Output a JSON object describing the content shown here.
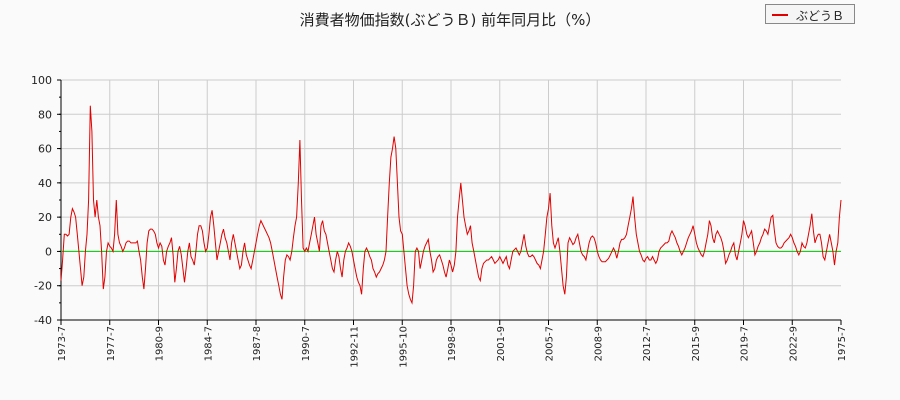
{
  "title": "消費者物価指数(ぶどうＢ) 前年同月比（%）",
  "legend": {
    "label": "ぶどうＢ",
    "color": "#e00000"
  },
  "chart_data": {
    "type": "line",
    "title": "消費者物価指数(ぶどうＢ) 前年同月比（%）",
    "xlabel": "",
    "ylabel": "",
    "ylim": [
      -40,
      100
    ],
    "yticks": [
      -40,
      -20,
      0,
      20,
      40,
      60,
      80,
      100
    ],
    "grid": true,
    "legend_position": "top-right",
    "zero_line_color": "#00cc00",
    "x_tick_labels": [
      "1973-7",
      "1977-7",
      "1980-9",
      "1984-7",
      "1987-8",
      "1990-7",
      "1992-11",
      "1995-10",
      "1998-9",
      "2001-9",
      "2005-7",
      "2008-9",
      "2012-7",
      "2015-9",
      "2019-7",
      "2022-9",
      "1975-7"
    ],
    "x_start": "1973-7",
    "series": [
      {
        "name": "ぶどうＢ",
        "color": "#e00000",
        "sample_interval_months": 2,
        "values": [
          -17,
          -5,
          10,
          10,
          9,
          10,
          20,
          25,
          23,
          20,
          10,
          0,
          -10,
          -20,
          -15,
          0,
          10,
          30,
          85,
          70,
          30,
          20,
          30,
          20,
          15,
          0,
          -22,
          -15,
          0,
          5,
          3,
          2,
          0,
          10,
          30,
          10,
          5,
          3,
          0,
          2,
          5,
          6,
          6,
          5,
          5,
          5,
          5,
          6,
          0,
          -5,
          -15,
          -22,
          -10,
          5,
          12,
          13,
          13,
          12,
          10,
          5,
          2,
          5,
          3,
          -5,
          -8,
          0,
          3,
          5,
          8,
          -2,
          -18,
          -10,
          0,
          3,
          -2,
          -10,
          -18,
          -10,
          0,
          5,
          -3,
          -5,
          -8,
          0,
          10,
          15,
          15,
          12,
          5,
          0,
          2,
          10,
          20,
          24,
          15,
          5,
          -5,
          0,
          5,
          10,
          13,
          8,
          5,
          0,
          -5,
          5,
          10,
          5,
          0,
          -5,
          -10,
          -8,
          0,
          5,
          -2,
          -5,
          -8,
          -10,
          -5,
          0,
          5,
          10,
          15,
          18,
          16,
          14,
          12,
          10,
          8,
          5,
          0,
          -5,
          -10,
          -15,
          -20,
          -25,
          -28,
          -15,
          -5,
          -2,
          -3,
          -5,
          0,
          8,
          15,
          20,
          40,
          65,
          30,
          2,
          0,
          2,
          0,
          5,
          10,
          15,
          20,
          10,
          5,
          0,
          15,
          18,
          12,
          10,
          5,
          0,
          -5,
          -10,
          -12,
          -5,
          0,
          -3,
          -10,
          -15,
          -5,
          0,
          2,
          5,
          3,
          0,
          -5,
          -10,
          -15,
          -18,
          -20,
          -25,
          -10,
          0,
          2,
          0,
          -3,
          -5,
          -10,
          -12,
          -15,
          -13,
          -12,
          -10,
          -8,
          -5,
          0,
          20,
          40,
          55,
          60,
          67,
          60,
          40,
          20,
          12,
          10,
          0,
          -10,
          -20,
          -25,
          -28,
          -30,
          -20,
          0,
          2,
          0,
          -10,
          -5,
          0,
          3,
          5,
          7,
          0,
          -5,
          -12,
          -10,
          -5,
          -3,
          -2,
          -5,
          -8,
          -12,
          -15,
          -10,
          -5,
          -8,
          -12,
          -8,
          0,
          20,
          30,
          40,
          30,
          20,
          15,
          10,
          12,
          15,
          5,
          0,
          -5,
          -10,
          -15,
          -17,
          -10,
          -7,
          -6,
          -5,
          -5,
          -4,
          -3,
          -5,
          -7,
          -6,
          -5,
          -3,
          -5,
          -7,
          -5,
          -3,
          -8,
          -10,
          -5,
          0,
          1,
          2,
          0,
          -2,
          0,
          5,
          10,
          3,
          -1,
          -3,
          -3,
          -2,
          -3,
          -5,
          -7,
          -8,
          -10,
          -5,
          0,
          10,
          20,
          25,
          34,
          15,
          5,
          2,
          5,
          8,
          0,
          -10,
          -20,
          -25,
          -15,
          5,
          8,
          6,
          4,
          5,
          8,
          10,
          5,
          0,
          -2,
          -3,
          -5,
          0,
          5,
          8,
          9,
          8,
          5,
          0,
          -3,
          -5,
          -6,
          -6,
          -6,
          -5,
          -4,
          -2,
          0,
          2,
          0,
          -4,
          0,
          5,
          7,
          7,
          8,
          10,
          15,
          20,
          25,
          32,
          20,
          10,
          5,
          0,
          -2,
          -5,
          -6,
          -4,
          -3,
          -5,
          -5,
          -3,
          -5,
          -7,
          -5,
          0,
          2,
          3,
          4,
          5,
          5,
          6,
          10,
          12,
          10,
          8,
          5,
          3,
          0,
          -2,
          0,
          2,
          5,
          8,
          10,
          12,
          15,
          10,
          5,
          2,
          0,
          -2,
          -3,
          0,
          5,
          10,
          18,
          15,
          8,
          5,
          10,
          12,
          10,
          8,
          5,
          0,
          -7,
          -5,
          -2,
          0,
          3,
          5,
          -2,
          -5,
          0,
          5,
          10,
          18,
          15,
          10,
          8,
          10,
          12,
          5,
          -2,
          0,
          3,
          5,
          8,
          10,
          13,
          12,
          10,
          15,
          20,
          21,
          12,
          5,
          3,
          2,
          2,
          3,
          5,
          6,
          7,
          8,
          10,
          8,
          5,
          3,
          0,
          -2,
          0,
          5,
          3,
          2,
          5,
          10,
          15,
          22,
          12,
          5,
          8,
          10,
          10,
          5,
          -3,
          -5,
          0,
          5,
          10,
          5,
          0,
          -8,
          0,
          5,
          20,
          30
        ]
      }
    ]
  },
  "axes": {
    "y_labels": [
      "100",
      "80",
      "60",
      "40",
      "20",
      "0",
      "-20",
      "-40"
    ],
    "x_labels": [
      "1973-7",
      "1977-7",
      "1980-9",
      "1984-7",
      "1987-8",
      "1990-7",
      "1992-11",
      "1995-10",
      "1998-9",
      "2001-9",
      "2005-7",
      "2008-9",
      "2012-7",
      "2015-9",
      "2019-7",
      "2022-9",
      "1975-7"
    ]
  }
}
